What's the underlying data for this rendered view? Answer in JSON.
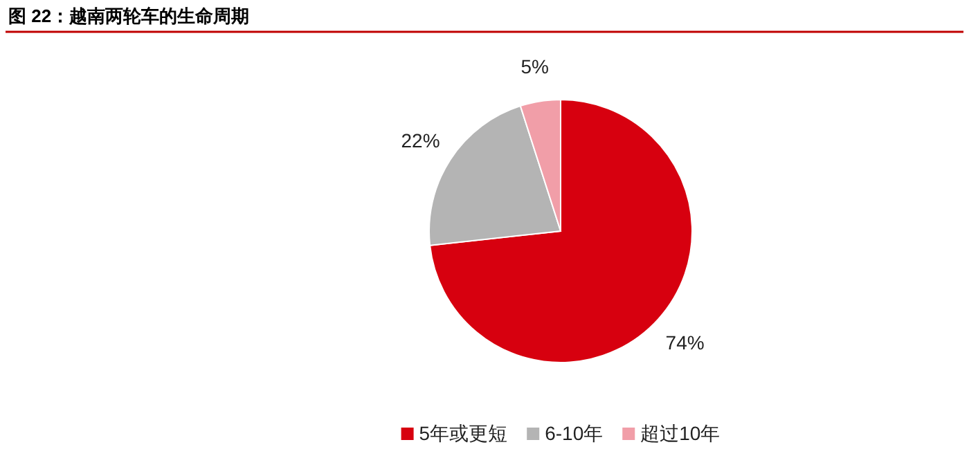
{
  "chart_data": {
    "type": "pie",
    "title": "图 22：越南两轮车的生命周期",
    "categories": [
      "5年或更短",
      "6-10年",
      "超过10年"
    ],
    "values": [
      74,
      22,
      5
    ],
    "colors": [
      "#d7000f",
      "#b4b4b4",
      "#f19ea8"
    ],
    "value_labels": [
      "74%",
      "22%",
      "5%"
    ],
    "legend": "bottom"
  }
}
